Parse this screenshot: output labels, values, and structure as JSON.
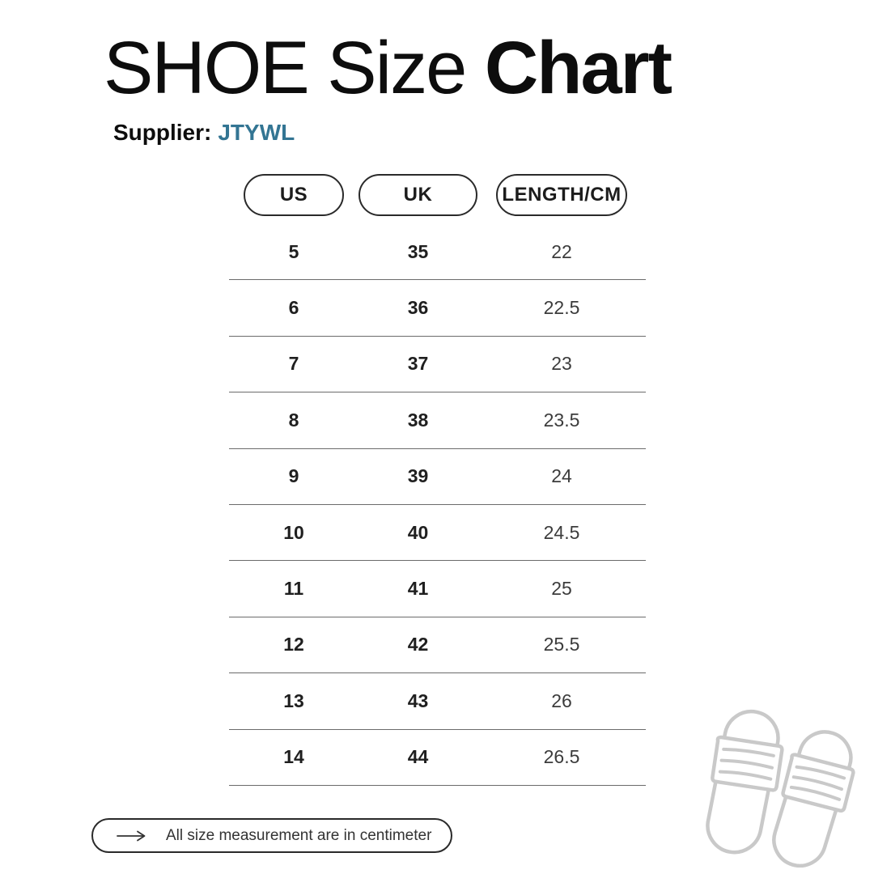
{
  "title": {
    "regular": "SHOE Size ",
    "bold": "Chart"
  },
  "supplier": {
    "label": "Supplier:",
    "name": "JTYWL",
    "name_color": "#337593"
  },
  "table": {
    "headers": [
      "US",
      "UK",
      "LENGTH/CM"
    ],
    "rows": [
      {
        "us": "5",
        "uk": "35",
        "cm": "22"
      },
      {
        "us": "6",
        "uk": "36",
        "cm": "22.5"
      },
      {
        "us": "7",
        "uk": "37",
        "cm": "23"
      },
      {
        "us": "8",
        "uk": "38",
        "cm": "23.5"
      },
      {
        "us": "9",
        "uk": "39",
        "cm": "24"
      },
      {
        "us": "10",
        "uk": "40",
        "cm": "24.5"
      },
      {
        "us": "11",
        "uk": "41",
        "cm": "25"
      },
      {
        "us": "12",
        "uk": "42",
        "cm": "25.5"
      },
      {
        "us": "13",
        "uk": "43",
        "cm": "26"
      },
      {
        "us": "14",
        "uk": "44",
        "cm": "26.5"
      }
    ]
  },
  "footer": {
    "note": "All size measurement are in centimeter"
  },
  "icons": {
    "arrow": "right-arrow-icon",
    "slippers": "slide-sandals-icon"
  },
  "colors": {
    "text": "#0d0d0d",
    "accent_teal": "#337593",
    "divider": "#6b6b6b",
    "pill_border": "#2a2a2a",
    "illustration_stroke": "#c9c9c9"
  },
  "chart_data": {
    "type": "table",
    "title": "SHOE Size Chart",
    "subtitle": "Supplier: JTYWL",
    "columns": [
      "US",
      "UK",
      "LENGTH/CM"
    ],
    "rows": [
      [
        5,
        35,
        22
      ],
      [
        6,
        36,
        22.5
      ],
      [
        7,
        37,
        23
      ],
      [
        8,
        38,
        23.5
      ],
      [
        9,
        39,
        24
      ],
      [
        10,
        40,
        24.5
      ],
      [
        11,
        41,
        25
      ],
      [
        12,
        42,
        25.5
      ],
      [
        13,
        43,
        26
      ],
      [
        14,
        44,
        26.5
      ]
    ],
    "note": "All size measurement are in centimeter"
  }
}
